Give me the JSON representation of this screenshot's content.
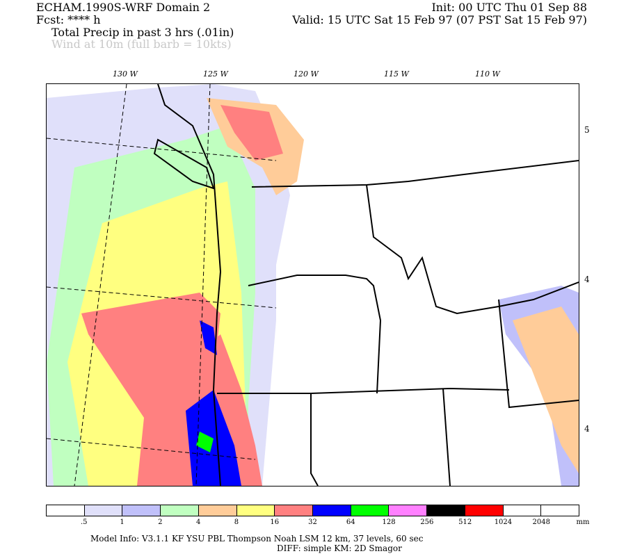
{
  "header": {
    "title": "ECHAM.1990S-WRF Domain 2",
    "init": "Init: 00 UTC Thu 01 Sep 88",
    "fcst": "Fcst: **** h",
    "valid": "Valid: 15 UTC Sat 15 Feb 97 (07 PST Sat 15 Feb 97)",
    "field1": "Total Precip in past 3 hrs (.01in)",
    "field2": "Wind at 10m (full barb = 10kts)"
  },
  "map": {
    "lon_labels": [
      "130 W",
      "125 W",
      "120 W",
      "115 W",
      "110 W"
    ],
    "lat_labels": [
      "5",
      "4",
      "4"
    ]
  },
  "legend": {
    "colors": [
      "#ffffff",
      "#e0e0fa",
      "#c0c0fa",
      "#c0ffc0",
      "#ffcc99",
      "#ffff80",
      "#ff8080",
      "#0000ff",
      "#00ff00",
      "#ff80ff",
      "#000000",
      "#ff0000",
      "#ffffff",
      "#ffffff"
    ],
    "labels": [
      ".5",
      "1",
      "2",
      "4",
      "8",
      "16",
      "32",
      "64",
      "128",
      "256",
      "512",
      "1024",
      "2048"
    ],
    "unit": "mm"
  },
  "footer": {
    "line1": "Model Info: V3.1.1    KF      YSU PBL   Thompson    Noah LSM   12 km,    37 levels,    60 sec",
    "line2": "DIFF: simple KM: 2D Smagor"
  }
}
